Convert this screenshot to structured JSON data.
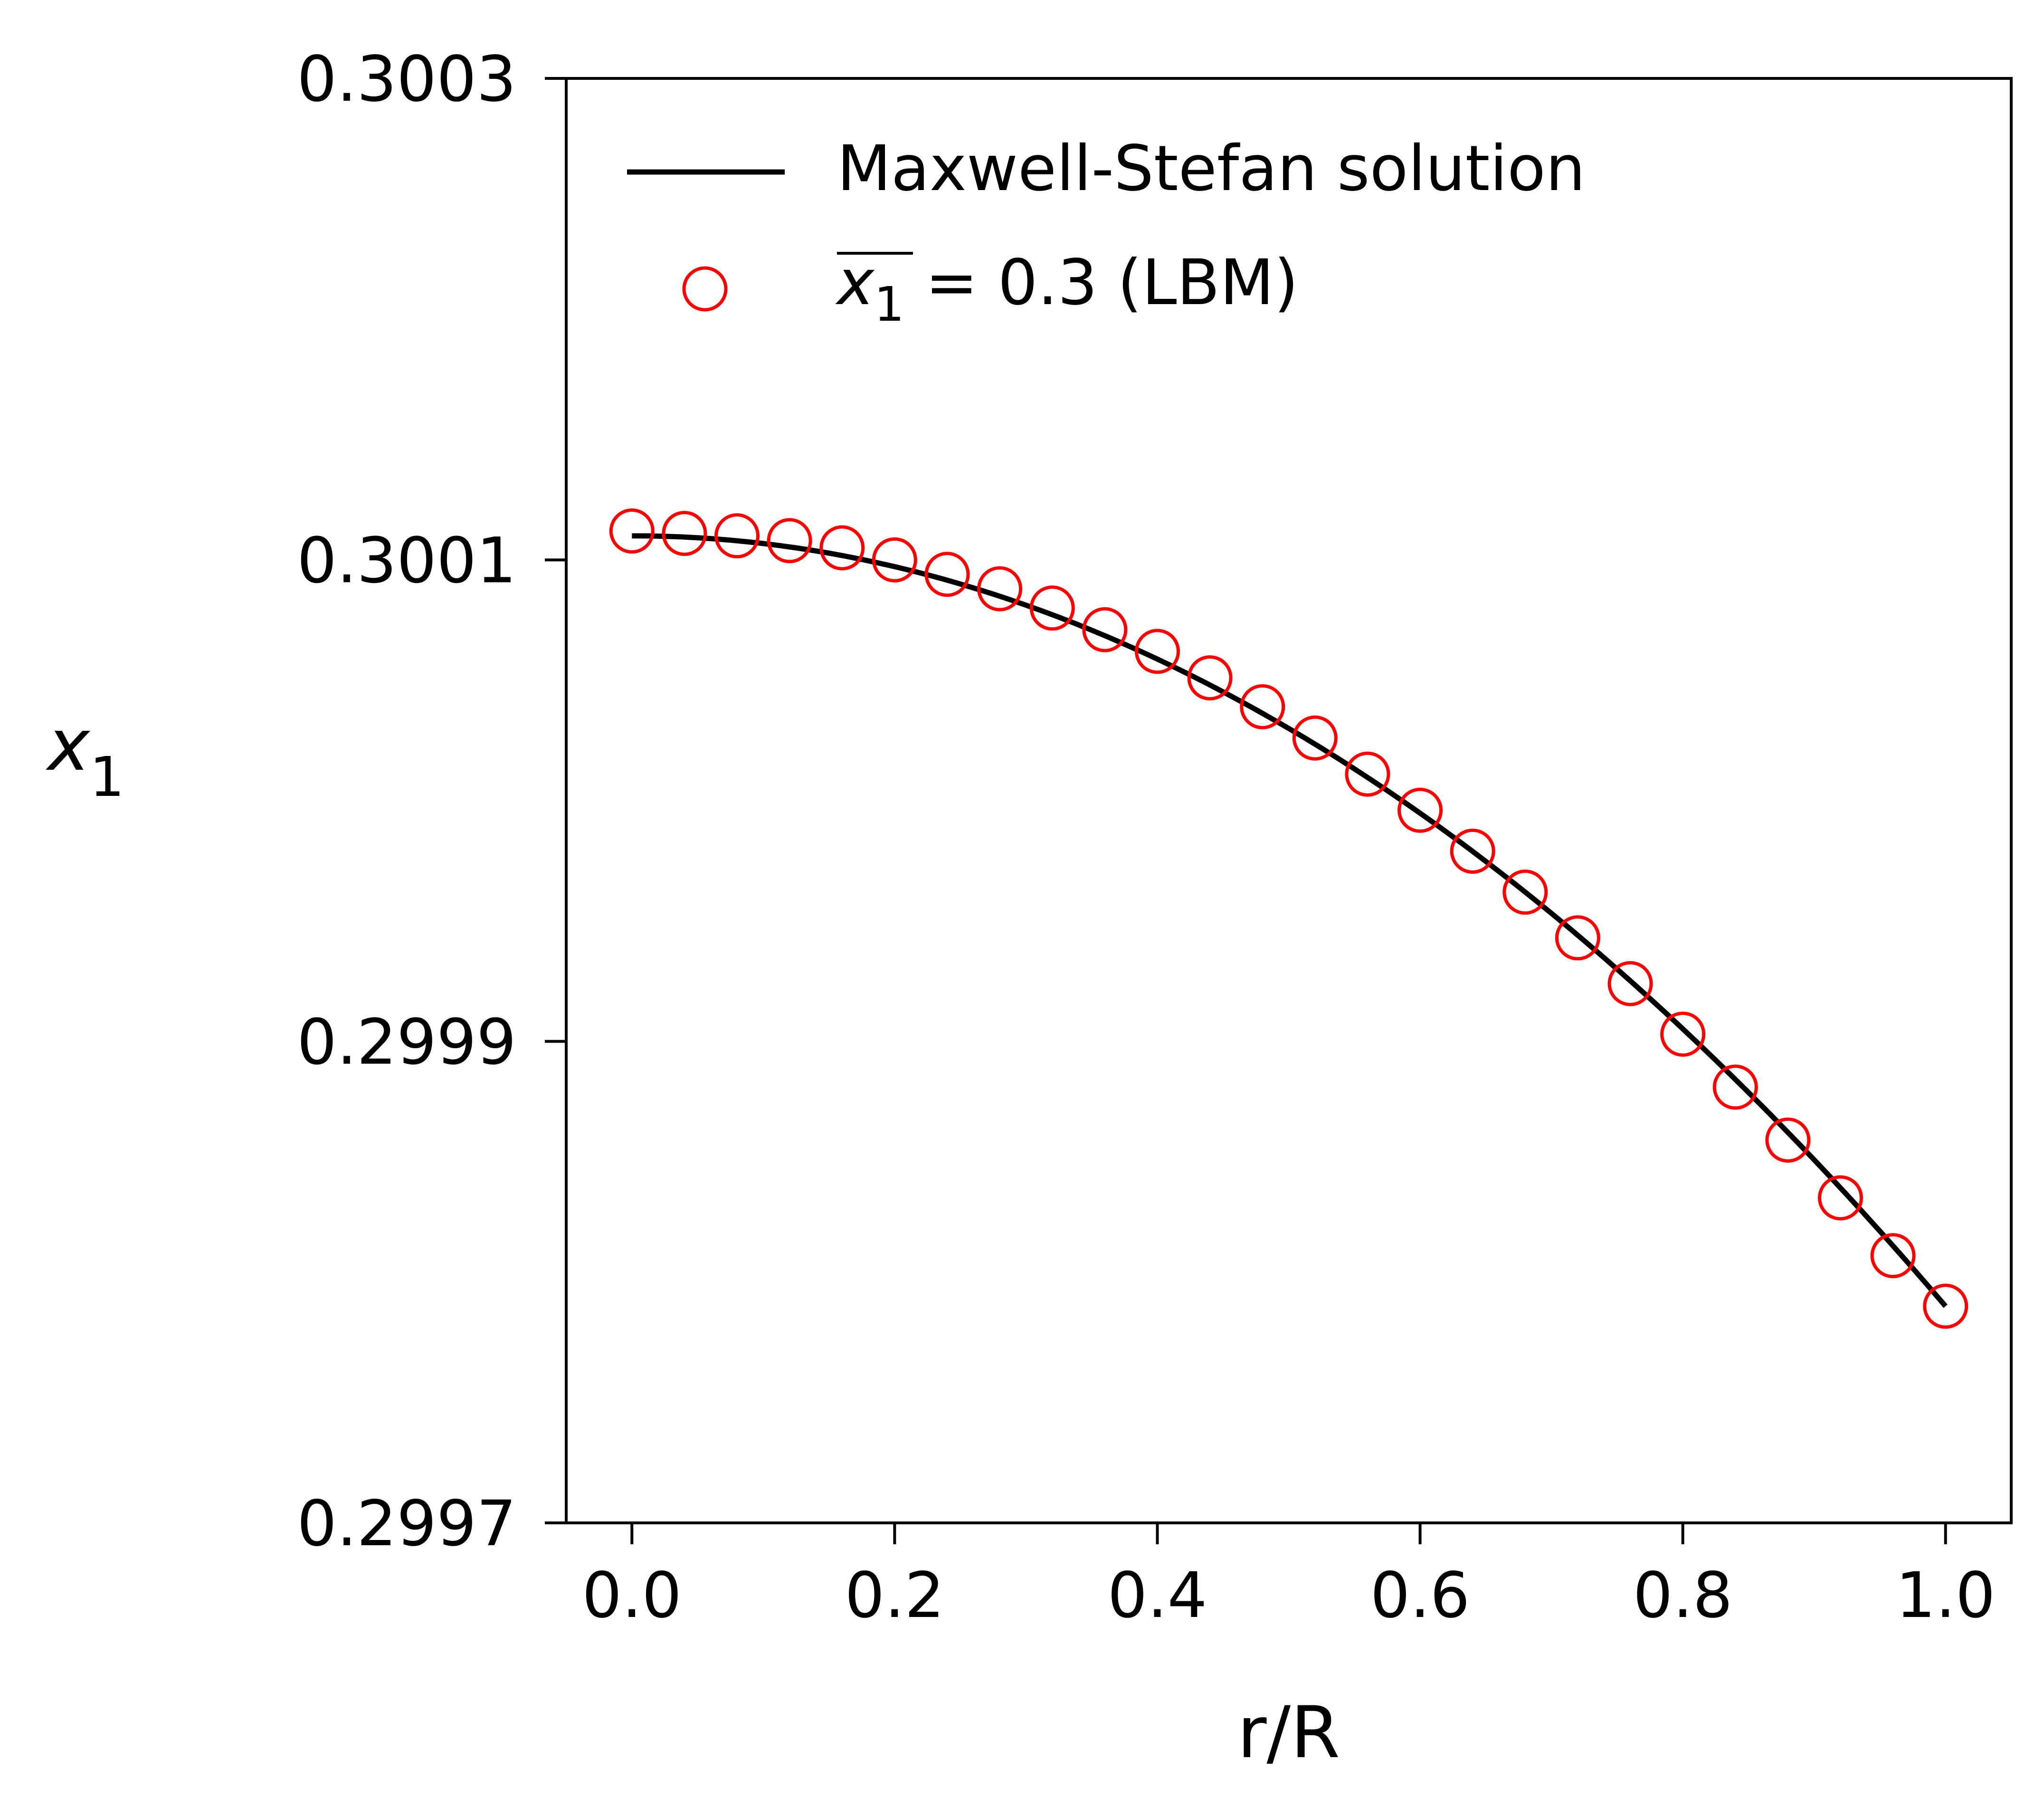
{
  "chart_data": {
    "type": "line",
    "title": "",
    "xlabel": "r/R",
    "ylabel_base": "x",
    "ylabel_sub": "1",
    "xlim": [
      -0.05,
      1.05
    ],
    "ylim": [
      0.2997,
      0.3003
    ],
    "xticks": [
      0.0,
      0.2,
      0.4,
      0.6,
      0.8,
      1.0
    ],
    "xtick_labels": [
      "0.0",
      "0.2",
      "0.4",
      "0.6",
      "0.8",
      "1.0"
    ],
    "yticks": [
      0.2997,
      0.2999,
      0.3001,
      0.3003
    ],
    "ytick_labels": [
      "0.2997",
      "0.2999",
      "0.3001",
      "0.3003"
    ],
    "grid": false,
    "legend_position": "top-left",
    "series": [
      {
        "name": "Maxwell-Stefan solution",
        "kind": "line",
        "color": "#000000",
        "model": "parabolic",
        "x_range": [
          0.0,
          1.0
        ],
        "y_center": 0.30011,
        "y_wall": 0.29979
      },
      {
        "name": "= 0.3 (LBM)",
        "legend_math_base": "x",
        "legend_math_sub": "1",
        "kind": "scatter",
        "marker": "open-circle",
        "color": "#ff0000",
        "x": [
          0.0,
          0.04,
          0.08,
          0.12,
          0.16,
          0.2,
          0.24,
          0.28,
          0.32,
          0.36,
          0.4,
          0.44,
          0.48,
          0.52,
          0.56,
          0.6,
          0.64,
          0.68,
          0.72,
          0.76,
          0.8,
          0.84,
          0.88,
          0.92,
          0.96,
          1.0
        ],
        "y": [
          0.300112,
          0.300111,
          0.30011,
          0.300108,
          0.300105,
          0.3001,
          0.300094,
          0.300088,
          0.30008,
          0.300071,
          0.300062,
          0.300051,
          0.300039,
          0.300026,
          0.300011,
          0.299996,
          0.299979,
          0.299962,
          0.299943,
          0.299924,
          0.299903,
          0.299881,
          0.299859,
          0.299835,
          0.299811,
          0.29979
        ]
      }
    ]
  }
}
